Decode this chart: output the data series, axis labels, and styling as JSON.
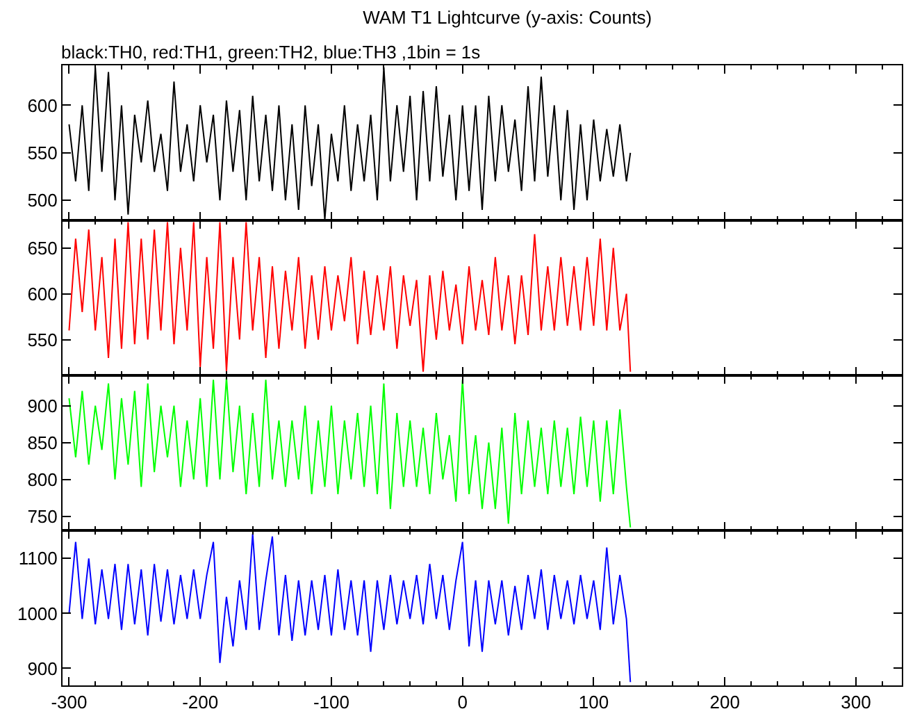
{
  "chart_data": [
    {
      "type": "line",
      "title": "WAM T1 Lightcurve (y-axis: Counts)",
      "subtitle": "black:TH0, red:TH1, green:TH2, blue:TH3 ,1bin = 1s",
      "xlim": [
        -305,
        335
      ],
      "xticks": [
        -300,
        -200,
        -100,
        0,
        100,
        200,
        300
      ],
      "ylim": [
        479,
        642
      ],
      "yticks": [
        500,
        550,
        600
      ],
      "tick_labels": "y",
      "x": [
        -300,
        -295,
        -290,
        -285,
        -280,
        -275,
        -270,
        -265,
        -260,
        -255,
        -250,
        -245,
        -240,
        -235,
        -230,
        -225,
        -220,
        -215,
        -210,
        -205,
        -200,
        -195,
        -190,
        -185,
        -180,
        -175,
        -170,
        -165,
        -160,
        -155,
        -150,
        -145,
        -140,
        -135,
        -130,
        -125,
        -120,
        -115,
        -110,
        -105,
        -100,
        -95,
        -90,
        -85,
        -80,
        -75,
        -70,
        -65,
        -60,
        -55,
        -50,
        -45,
        -40,
        -35,
        -30,
        -25,
        -20,
        -15,
        -10,
        -5,
        0,
        5,
        10,
        15,
        20,
        25,
        30,
        35,
        40,
        45,
        50,
        55,
        60,
        65,
        70,
        75,
        80,
        85,
        90,
        95,
        100,
        105,
        110,
        115,
        120,
        125,
        128
      ],
      "series": [
        {
          "color": "#000000",
          "values": [
            580,
            520,
            600,
            510,
            640,
            530,
            635,
            500,
            600,
            485,
            590,
            540,
            605,
            530,
            570,
            510,
            625,
            530,
            580,
            520,
            600,
            540,
            590,
            500,
            605,
            530,
            595,
            500,
            610,
            520,
            590,
            510,
            600,
            500,
            580,
            490,
            600,
            515,
            580,
            480,
            570,
            520,
            600,
            510,
            580,
            520,
            590,
            500,
            640,
            520,
            600,
            530,
            610,
            500,
            615,
            520,
            620,
            525,
            590,
            500,
            600,
            510,
            600,
            490,
            610,
            520,
            600,
            530,
            585,
            510,
            620,
            520,
            630,
            525,
            600,
            500,
            595,
            490,
            580,
            500,
            585,
            520,
            575,
            525,
            580,
            520,
            550
          ]
        }
      ]
    },
    {
      "type": "line",
      "xlim": [
        -305,
        335
      ],
      "xticks": [
        -300,
        -200,
        -100,
        0,
        100,
        200,
        300
      ],
      "ylim": [
        511,
        680
      ],
      "yticks": [
        550,
        600,
        650
      ],
      "tick_labels": "y",
      "x": [
        -300,
        -295,
        -290,
        -285,
        -280,
        -275,
        -270,
        -265,
        -260,
        -255,
        -250,
        -245,
        -240,
        -235,
        -230,
        -225,
        -220,
        -215,
        -210,
        -205,
        -200,
        -195,
        -190,
        -185,
        -180,
        -175,
        -170,
        -165,
        -160,
        -155,
        -150,
        -145,
        -140,
        -135,
        -130,
        -125,
        -120,
        -115,
        -110,
        -105,
        -100,
        -95,
        -90,
        -85,
        -80,
        -75,
        -70,
        -65,
        -60,
        -55,
        -50,
        -45,
        -40,
        -35,
        -30,
        -25,
        -20,
        -15,
        -10,
        -5,
        0,
        5,
        10,
        15,
        20,
        25,
        30,
        35,
        40,
        45,
        50,
        55,
        60,
        65,
        70,
        75,
        80,
        85,
        90,
        95,
        100,
        105,
        110,
        115,
        120,
        125,
        128
      ],
      "series": [
        {
          "color": "#ff0000",
          "values": [
            560,
            660,
            580,
            670,
            560,
            640,
            530,
            660,
            540,
            678,
            545,
            660,
            550,
            670,
            560,
            678,
            545,
            650,
            560,
            678,
            520,
            640,
            540,
            678,
            515,
            640,
            550,
            678,
            560,
            640,
            530,
            630,
            540,
            625,
            560,
            640,
            540,
            620,
            550,
            630,
            560,
            620,
            570,
            640,
            545,
            625,
            555,
            620,
            560,
            630,
            540,
            620,
            565,
            615,
            515,
            620,
            550,
            625,
            560,
            610,
            545,
            630,
            560,
            615,
            555,
            640,
            560,
            620,
            545,
            620,
            555,
            665,
            560,
            630,
            560,
            640,
            565,
            630,
            560,
            640,
            565,
            660,
            560,
            650,
            560,
            600,
            515
          ]
        }
      ]
    },
    {
      "type": "line",
      "xlim": [
        -305,
        335
      ],
      "xticks": [
        -300,
        -200,
        -100,
        0,
        100,
        200,
        300
      ],
      "ylim": [
        731,
        941
      ],
      "yticks": [
        750,
        800,
        850,
        900
      ],
      "tick_labels": "y",
      "x": [
        -300,
        -295,
        -290,
        -285,
        -280,
        -275,
        -270,
        -265,
        -260,
        -255,
        -250,
        -245,
        -240,
        -235,
        -230,
        -225,
        -220,
        -215,
        -210,
        -205,
        -200,
        -195,
        -190,
        -185,
        -180,
        -175,
        -170,
        -165,
        -160,
        -155,
        -150,
        -145,
        -140,
        -135,
        -130,
        -125,
        -120,
        -115,
        -110,
        -105,
        -100,
        -95,
        -90,
        -85,
        -80,
        -75,
        -70,
        -65,
        -60,
        -55,
        -50,
        -45,
        -40,
        -35,
        -30,
        -25,
        -20,
        -15,
        -10,
        -5,
        0,
        5,
        10,
        15,
        20,
        25,
        30,
        35,
        40,
        45,
        50,
        55,
        60,
        65,
        70,
        75,
        80,
        85,
        90,
        95,
        100,
        105,
        110,
        115,
        120,
        125,
        128
      ],
      "series": [
        {
          "color": "#00ff00",
          "values": [
            910,
            830,
            920,
            820,
            900,
            840,
            930,
            800,
            910,
            820,
            920,
            790,
            930,
            810,
            900,
            830,
            900,
            790,
            880,
            800,
            910,
            790,
            935,
            800,
            938,
            810,
            900,
            780,
            890,
            790,
            935,
            800,
            880,
            790,
            880,
            800,
            900,
            780,
            880,
            790,
            900,
            780,
            880,
            800,
            890,
            790,
            900,
            780,
            930,
            760,
            890,
            790,
            880,
            790,
            870,
            780,
            890,
            800,
            860,
            770,
            935,
            780,
            860,
            760,
            850,
            760,
            870,
            740,
            890,
            780,
            880,
            790,
            870,
            780,
            880,
            790,
            870,
            780,
            885,
            790,
            880,
            770,
            880,
            780,
            895,
            790,
            735
          ]
        }
      ]
    },
    {
      "type": "line",
      "xlim": [
        -305,
        335
      ],
      "xticks": [
        -300,
        -200,
        -100,
        0,
        100,
        200,
        300
      ],
      "ylim": [
        869,
        1151
      ],
      "yticks": [
        900,
        1000,
        1100
      ],
      "x": [
        -300,
        -295,
        -290,
        -285,
        -280,
        -275,
        -270,
        -265,
        -260,
        -255,
        -250,
        -245,
        -240,
        -235,
        -230,
        -225,
        -220,
        -215,
        -210,
        -205,
        -200,
        -195,
        -190,
        -185,
        -180,
        -175,
        -170,
        -165,
        -160,
        -155,
        -150,
        -145,
        -140,
        -135,
        -130,
        -125,
        -120,
        -115,
        -110,
        -105,
        -100,
        -95,
        -90,
        -85,
        -80,
        -75,
        -70,
        -65,
        -60,
        -55,
        -50,
        -45,
        -40,
        -35,
        -30,
        -25,
        -20,
        -15,
        -10,
        -5,
        0,
        5,
        10,
        15,
        20,
        25,
        30,
        35,
        40,
        45,
        50,
        55,
        60,
        65,
        70,
        75,
        80,
        85,
        90,
        95,
        100,
        105,
        110,
        115,
        120,
        125,
        128
      ],
      "series": [
        {
          "color": "#0000ff",
          "values": [
            1000,
            1130,
            990,
            1100,
            980,
            1080,
            990,
            1090,
            970,
            1090,
            980,
            1080,
            960,
            1090,
            985,
            1080,
            980,
            1070,
            990,
            1080,
            990,
            1070,
            1130,
            910,
            1030,
            940,
            1060,
            970,
            1145,
            970,
            1060,
            1140,
            960,
            1070,
            950,
            1060,
            960,
            1060,
            970,
            1070,
            960,
            1080,
            970,
            1060,
            960,
            1060,
            930,
            1060,
            970,
            1070,
            980,
            1060,
            990,
            1070,
            980,
            1090,
            990,
            1070,
            970,
            1060,
            1130,
            940,
            1060,
            930,
            1060,
            980,
            1060,
            960,
            1050,
            970,
            1070,
            990,
            1080,
            970,
            1070,
            990,
            1060,
            980,
            1070,
            990,
            1060,
            970,
            1120,
            980,
            1070,
            990,
            875
          ]
        }
      ]
    }
  ]
}
